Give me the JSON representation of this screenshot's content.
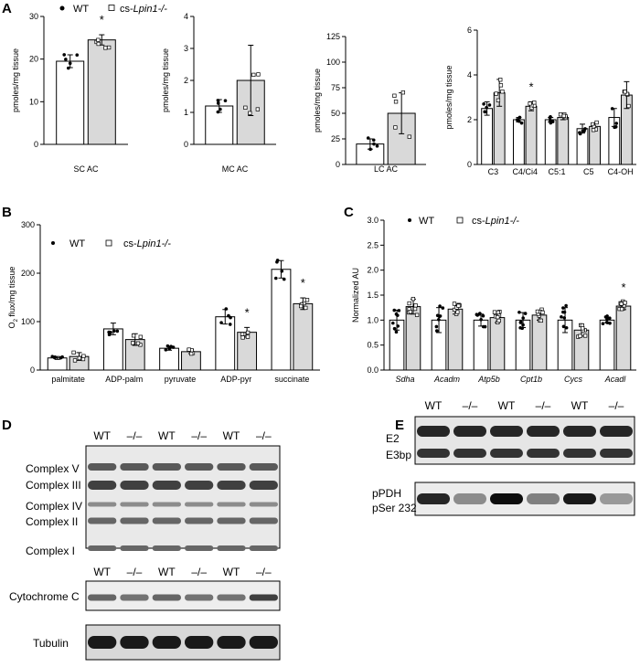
{
  "legend": {
    "wt": "WT",
    "ko": "cs-",
    "ko_gene": "Lpin1-/-"
  },
  "panel_letters": {
    "a": "A",
    "b": "B",
    "c": "C",
    "d": "D",
    "e": "E"
  },
  "colors": {
    "wt_fill": "#ffffff",
    "ko_fill": "#d9d9d9",
    "stroke": "#000000"
  },
  "chart_data": [
    {
      "id": "A1",
      "type": "bar",
      "ylabel": "pmoles/mg tissue",
      "ylim": [
        0,
        30
      ],
      "yticks": [
        0,
        10,
        20,
        30
      ],
      "categories": [
        "SC AC"
      ],
      "series": [
        {
          "name": "WT",
          "values": [
            19.5
          ],
          "err": [
            1.5
          ]
        },
        {
          "name": "cs-Lpin1-/-",
          "values": [
            24.5
          ],
          "err": [
            1.2
          ]
        }
      ],
      "significant": [
        {
          "category": "SC AC",
          "series": 1,
          "label": "*"
        }
      ]
    },
    {
      "id": "A2",
      "type": "bar",
      "ylabel": "pmoles/mg tissue",
      "ylim": [
        0,
        4
      ],
      "yticks": [
        0,
        1,
        2,
        3,
        4
      ],
      "categories": [
        "MC AC"
      ],
      "series": [
        {
          "name": "WT",
          "values": [
            1.2
          ],
          "err": [
            0.2
          ]
        },
        {
          "name": "cs-Lpin1-/-",
          "values": [
            2.0
          ],
          "err": [
            1.1
          ]
        }
      ]
    },
    {
      "id": "A3",
      "type": "bar",
      "ylabel": "pmoles/mg tissue",
      "ylim": [
        0,
        125
      ],
      "yticks": [
        0,
        25,
        50,
        75,
        100,
        125
      ],
      "categories": [
        "LC AC"
      ],
      "series": [
        {
          "name": "WT",
          "values": [
            20
          ],
          "err": [
            5
          ]
        },
        {
          "name": "cs-Lpin1-/-",
          "values": [
            50
          ],
          "err": [
            20
          ]
        }
      ]
    },
    {
      "id": "A4",
      "type": "bar",
      "ylabel": "pmoles/mg tissue",
      "ylim": [
        0,
        6
      ],
      "yticks": [
        0,
        2,
        4,
        6
      ],
      "categories": [
        "C3",
        "C4/Ci4",
        "C5:1",
        "C5",
        "C4-OH"
      ],
      "series": [
        {
          "name": "WT",
          "values": [
            2.5,
            2.0,
            2.0,
            1.6,
            2.1
          ],
          "err": [
            0.3,
            0.1,
            0.1,
            0.2,
            0.4
          ]
        },
        {
          "name": "cs-Lpin1-/-",
          "values": [
            3.2,
            2.6,
            2.1,
            1.7,
            3.1
          ],
          "err": [
            0.6,
            0.2,
            0.1,
            0.15,
            0.6
          ]
        }
      ],
      "significant": [
        {
          "category": "C4/Ci4",
          "series": 1,
          "label": "*"
        }
      ]
    },
    {
      "id": "B",
      "type": "bar",
      "ylabel": "O2 flux/mg tissue",
      "ylim": [
        0,
        300
      ],
      "yticks": [
        0,
        100,
        200,
        300
      ],
      "categories": [
        "palmitate",
        "ADP-palm",
        "pyruvate",
        "ADP-pyr",
        "succinate"
      ],
      "series": [
        {
          "name": "WT",
          "values": [
            25,
            85,
            45,
            110,
            208
          ],
          "err": [
            3,
            12,
            4,
            15,
            18
          ]
        },
        {
          "name": "cs-Lpin1-/-",
          "values": [
            28,
            63,
            38,
            78,
            137
          ],
          "err": [
            8,
            12,
            4,
            10,
            12
          ]
        }
      ],
      "significant": [
        {
          "category": "ADP-pyr",
          "series": 1,
          "label": "*"
        },
        {
          "category": "succinate",
          "series": 1,
          "label": "*"
        }
      ]
    },
    {
      "id": "C",
      "type": "bar",
      "ylabel": "Normalized AU",
      "ylim": [
        0,
        3.0
      ],
      "yticks": [
        0.0,
        0.5,
        1.0,
        1.5,
        2.0,
        2.5,
        3.0
      ],
      "categories": [
        "Sdha",
        "Acadm",
        "Atp5b",
        "Cpt1b",
        "Cycs",
        "Acadl"
      ],
      "series": [
        {
          "name": "WT",
          "values": [
            1.0,
            1.0,
            1.0,
            1.0,
            1.0,
            1.0
          ],
          "err": [
            0.2,
            0.25,
            0.12,
            0.15,
            0.25,
            0.05
          ]
        },
        {
          "name": "cs-Lpin1-/-",
          "values": [
            1.27,
            1.22,
            1.05,
            1.1,
            0.8,
            1.28
          ],
          "err": [
            0.15,
            0.1,
            0.1,
            0.1,
            0.12,
            0.07
          ]
        }
      ],
      "significant": [
        {
          "category": "Acadl",
          "series": 1,
          "label": "*"
        }
      ]
    }
  ],
  "blot_d": {
    "lanes": [
      "WT",
      "–/–",
      "WT",
      "–/–",
      "WT",
      "–/–"
    ],
    "bands": [
      "Complex V",
      "Complex III",
      "Complex IV",
      "Complex II",
      "Complex I"
    ],
    "lower_labels": [
      "Cytochrome C",
      "Tubulin"
    ]
  },
  "blot_e": {
    "lanes": [
      "WT",
      "–/–",
      "WT",
      "–/–",
      "WT",
      "–/–"
    ],
    "labels": [
      "E2",
      "E3bp",
      "pPDH",
      "pSer 232"
    ]
  }
}
